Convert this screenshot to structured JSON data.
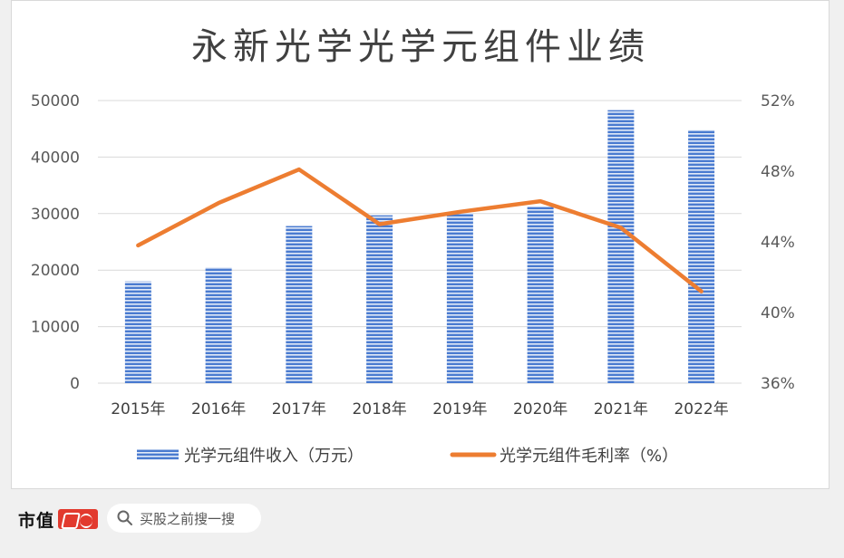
{
  "chart_data": {
    "type": "bar+line",
    "title": "永新光学光学元组件业绩",
    "categories": [
      "2015年",
      "2016年",
      "2017年",
      "2018年",
      "2019年",
      "2020年",
      "2021年",
      "2022年"
    ],
    "series": [
      {
        "name": "光学元组件收入（万元）",
        "type": "bar",
        "axis": "left",
        "values": [
          18000,
          20500,
          27800,
          29700,
          30100,
          31200,
          48300,
          44800
        ]
      },
      {
        "name": "光学元组件毛利率（%）",
        "type": "line",
        "axis": "right",
        "values": [
          43.8,
          46.2,
          48.1,
          45.0,
          45.7,
          46.3,
          44.8,
          41.2
        ]
      }
    ],
    "y_left": {
      "ticks": [
        "0",
        "10000",
        "20000",
        "30000",
        "40000",
        "50000"
      ],
      "min": 0,
      "max": 50000
    },
    "y_right": {
      "ticks": [
        "36%",
        "40%",
        "44%",
        "48%",
        "52%"
      ],
      "min": 36,
      "max": 52
    },
    "grid": true,
    "legend_position": "bottom",
    "colors": {
      "bar": "#4472c4",
      "line": "#ed7d31"
    }
  },
  "footer": {
    "brand": "市值",
    "search_placeholder": "买股之前搜一搜"
  }
}
